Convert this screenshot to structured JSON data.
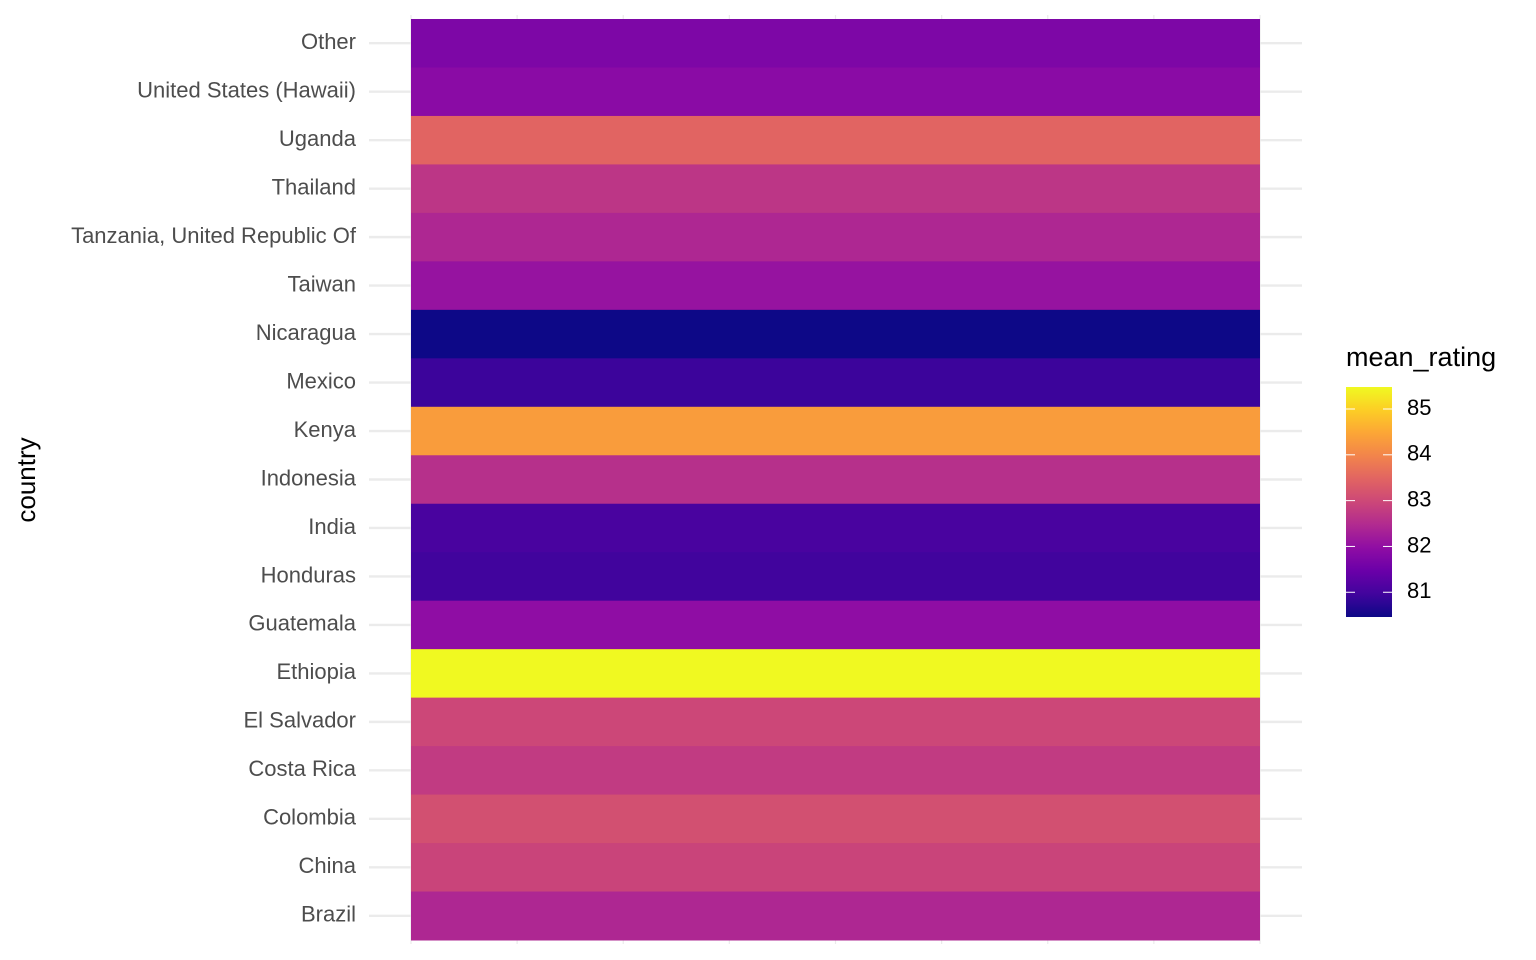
{
  "chart_data": {
    "type": "heatmap",
    "y_label": "country",
    "categories": [
      "Other",
      "United States (Hawaii)",
      "Uganda",
      "Thailand",
      "Tanzania, United Republic Of",
      "Taiwan",
      "Nicaragua",
      "Mexico",
      "Kenya",
      "Indonesia",
      "India",
      "Honduras",
      "Guatemala",
      "Ethiopia",
      "El Salvador",
      "Costa Rica",
      "Colombia",
      "China",
      "Brazil"
    ],
    "values": [
      81.72,
      81.9,
      83.47,
      82.67,
      82.42,
      82.07,
      80.46,
      80.91,
      84.33,
      82.57,
      81.06,
      80.96,
      81.97,
      85.48,
      82.97,
      82.77,
      83.12,
      82.92,
      82.42
    ],
    "colormap": "plasma",
    "legend_title": "mean_rating",
    "colorlim": [
      80.46,
      85.48
    ],
    "colorticks": [
      81,
      82,
      83,
      84,
      85
    ],
    "grid": true
  }
}
